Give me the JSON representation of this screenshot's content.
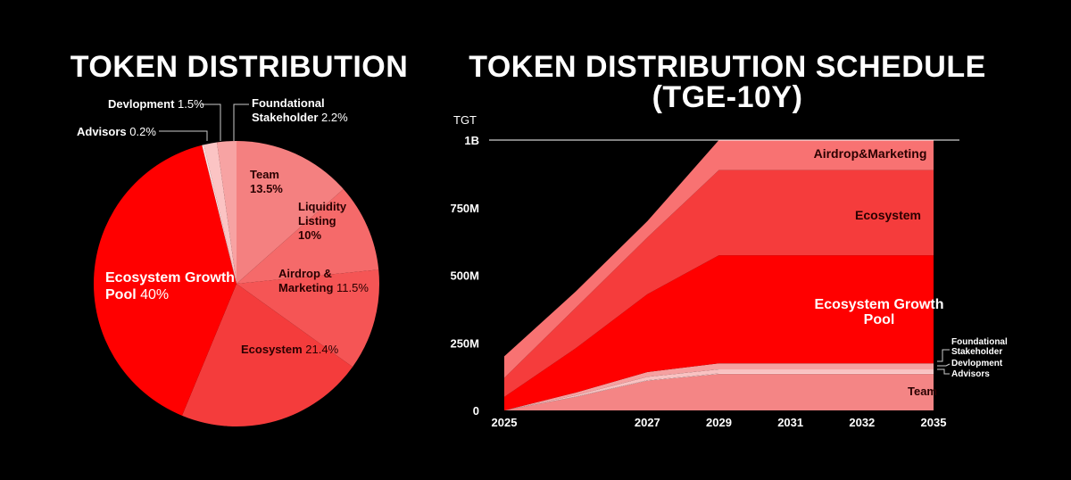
{
  "chart_data": [
    {
      "type": "pie",
      "title": "TOKEN DISTRIBUTION",
      "categories": [
        "Team",
        "Liquidity Listing",
        "Airdrop & Marketing",
        "Ecosystem",
        "Ecosystem Growth Pool",
        "Advisors",
        "Devlopment",
        "Foundational Stakeholder"
      ],
      "values": [
        13.5,
        10,
        11.5,
        21.4,
        40,
        0.2,
        1.5,
        2.2
      ],
      "value_labels": [
        "13.5%",
        "10%",
        "11.5%",
        "21.4%",
        "40%",
        "0.2%",
        "1.5%",
        "2.2%"
      ],
      "colors": [
        "#f48080",
        "#f56a6a",
        "#f55555",
        "#f43c3c",
        "#ff0000",
        "#fde3e3",
        "#fbc4c4",
        "#f7a3a3"
      ]
    },
    {
      "type": "stacked-area",
      "title": "TOKEN DISTRIBUTION SCHEDULE (TGE-10Y)",
      "y_label": "TGT",
      "categories": [
        "2025",
        null,
        "2027",
        "2029",
        "2031",
        "2032",
        "2035"
      ],
      "series": [
        {
          "name": "Team",
          "color": "#f48585",
          "values": [
            0,
            50000000,
            110000000,
            135000000,
            135000000,
            135000000,
            135000000
          ]
        },
        {
          "name": "Advisors",
          "color": "#fde0e0",
          "values": [
            0,
            1000000,
            2000000,
            2000000,
            2000000,
            2000000,
            2000000
          ]
        },
        {
          "name": "Devlopment",
          "color": "#f9c2c2",
          "values": [
            0,
            5000000,
            12000000,
            15000000,
            15000000,
            15000000,
            15000000
          ]
        },
        {
          "name": "Foundational Stakeholder",
          "color": "#f5a0a0",
          "values": [
            0,
            10000000,
            18000000,
            22000000,
            22000000,
            22000000,
            22000000
          ]
        },
        {
          "name": "Ecosystem Growth Pool",
          "color": "#ff0000",
          "values": [
            50000000,
            164000000,
            288000000,
            400000000,
            400000000,
            400000000,
            400000000
          ]
        },
        {
          "name": "Ecosystem",
          "color": "#f53c3c",
          "values": [
            70000000,
            150000000,
            210000000,
            315000000,
            315000000,
            315000000,
            315000000
          ]
        },
        {
          "name": "Airdrop&Marketing",
          "color": "#f87272",
          "values": [
            80000000,
            60000000,
            60000000,
            111000000,
            111000000,
            111000000,
            111000000
          ]
        }
      ],
      "ylim": [
        0,
        1000000000
      ],
      "yticks": [
        0,
        {
          "value": 250000000,
          "label": "250M"
        },
        {
          "value": 500000000,
          "label": "500M"
        },
        {
          "value": 750000000,
          "label": "750M"
        },
        {
          "value": 1000000000,
          "label": "1B"
        }
      ],
      "grid": false
    }
  ]
}
